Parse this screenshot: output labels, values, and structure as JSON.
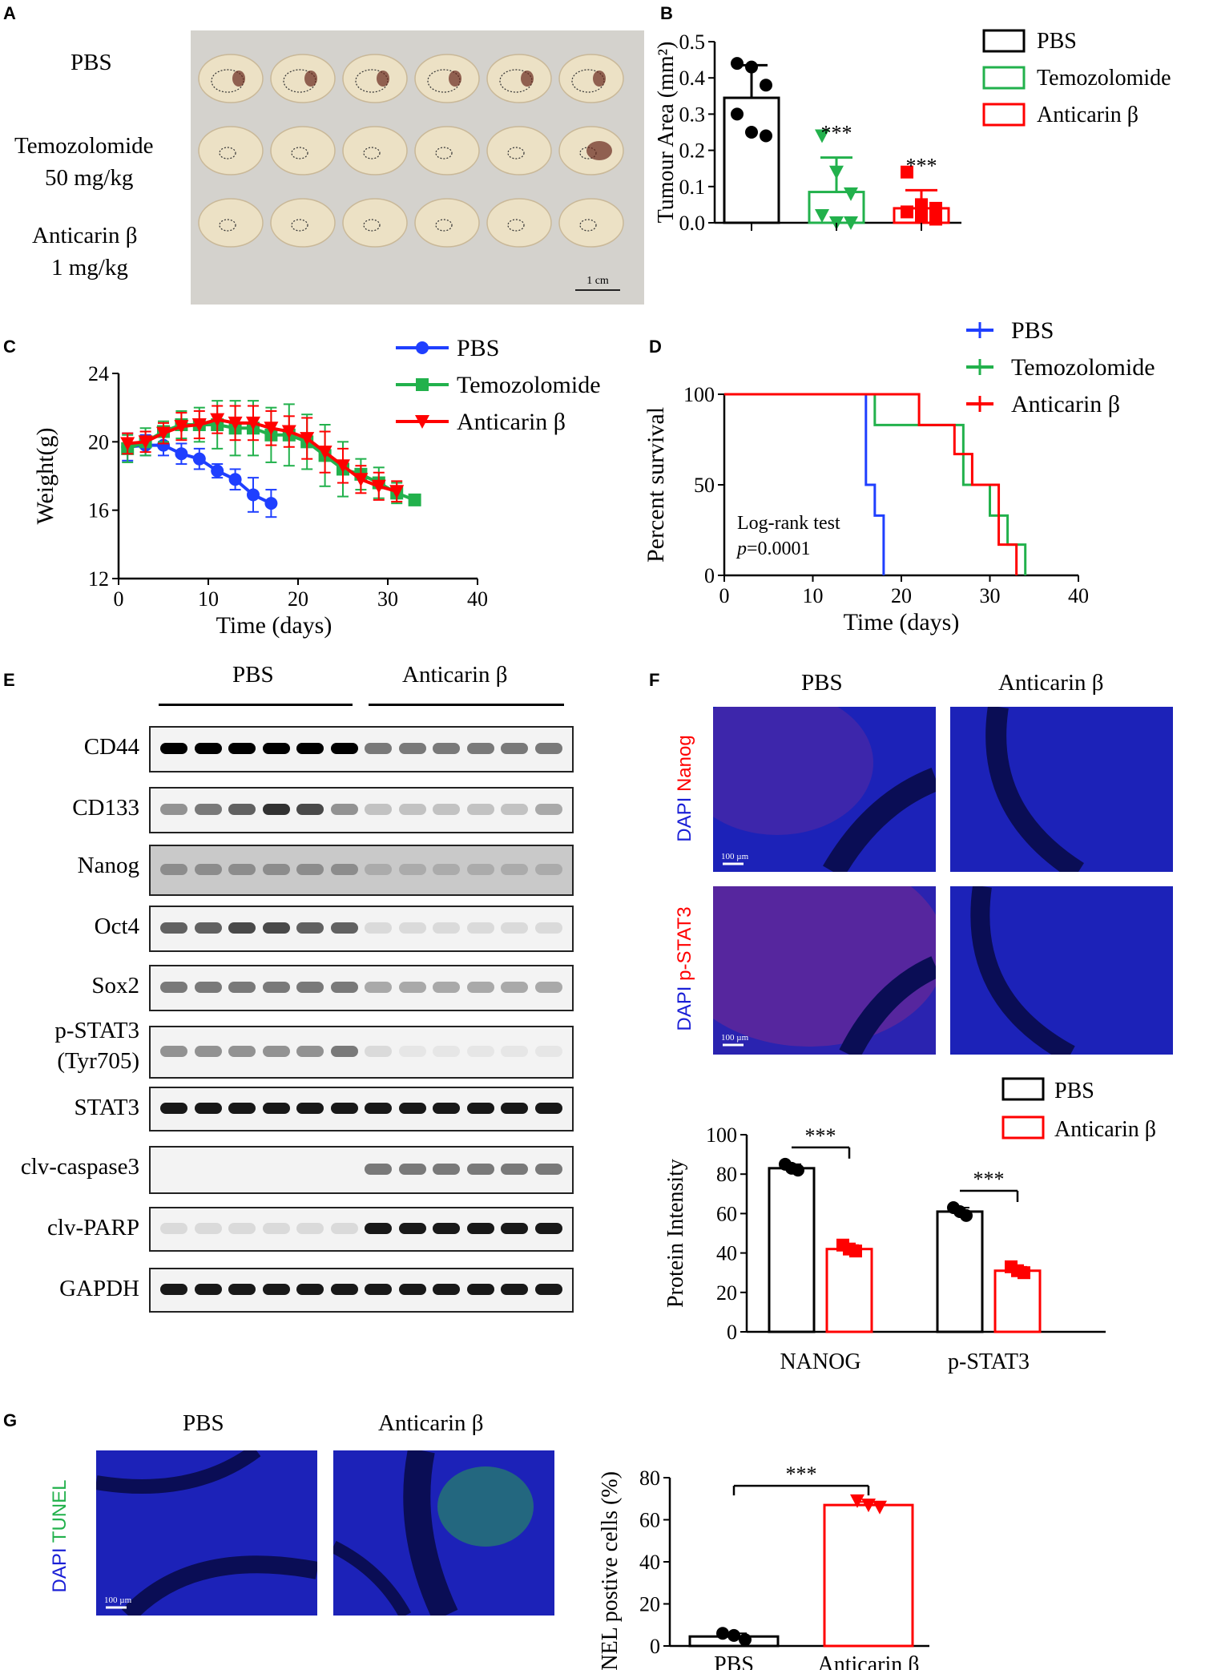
{
  "panel_letters": {
    "a": "A",
    "b": "B",
    "c": "C",
    "d": "D",
    "e": "E",
    "f": "F",
    "g": "G"
  },
  "panel_a": {
    "rows": [
      {
        "line1": "PBS",
        "line2": ""
      },
      {
        "line1": "Temozolomide",
        "line2": "50 mg/kg"
      },
      {
        "line1": "Anticarin β",
        "line2": "1 mg/kg"
      }
    ],
    "scale_bar": "1 cm"
  },
  "chart_data": [
    {
      "id": "B",
      "type": "bar",
      "ylabel": "Tumour Area (mm²)",
      "ylim": [
        0,
        0.5
      ],
      "yticks": [
        "0.0",
        "0.1",
        "0.2",
        "0.3",
        "0.4",
        "0.5"
      ],
      "categories": [
        "PBS",
        "Temozolomide",
        "Anticarin β"
      ],
      "values": [
        0.345,
        0.085,
        0.04
      ],
      "errors": [
        0.09,
        0.095,
        0.05
      ],
      "points": [
        [
          0.44,
          0.43,
          0.38,
          0.3,
          0.25,
          0.24
        ],
        [
          0.24,
          0.14,
          0.08,
          0.02,
          0.0,
          0.0
        ],
        [
          0.14,
          0.05,
          0.04,
          0.03,
          0.02,
          0.01
        ]
      ],
      "significance": [
        "",
        "***",
        "***"
      ],
      "legend": [
        "PBS",
        "Temozolomide",
        "Anticarin β"
      ],
      "colors": [
        "#000000",
        "#22b14c",
        "#ff0000"
      ]
    },
    {
      "id": "C",
      "type": "line",
      "ylabel": "Weight(g)",
      "xlabel": "Time (days)",
      "xlim": [
        0,
        40
      ],
      "ylim": [
        12,
        24
      ],
      "xticks": [
        "0",
        "10",
        "20",
        "30",
        "40"
      ],
      "yticks": [
        "12",
        "16",
        "20",
        "24"
      ],
      "series": [
        {
          "name": "PBS",
          "color": "#1f3fff",
          "x": [
            1,
            3,
            5,
            7,
            9,
            11,
            13,
            15,
            17
          ],
          "y": [
            19.7,
            19.8,
            19.8,
            19.3,
            19.0,
            18.3,
            17.8,
            16.9,
            16.4
          ],
          "err": [
            0.8,
            0.6,
            0.6,
            0.6,
            0.6,
            0.4,
            0.6,
            1.0,
            0.8
          ]
        },
        {
          "name": "Temozolomide",
          "color": "#22b14c",
          "x": [
            1,
            3,
            5,
            7,
            9,
            11,
            13,
            15,
            17,
            19,
            21,
            23,
            25,
            27,
            29,
            31,
            33
          ],
          "y": [
            19.6,
            20.0,
            20.6,
            21.0,
            21.0,
            21.0,
            20.8,
            20.8,
            20.4,
            20.4,
            20.0,
            19.2,
            18.4,
            18.1,
            17.6,
            17.0,
            16.6
          ],
          "err": [
            0.8,
            0.8,
            0.6,
            0.8,
            1.0,
            1.4,
            1.6,
            1.6,
            1.6,
            1.8,
            1.6,
            1.8,
            1.6,
            0.9,
            0.9,
            0.6,
            0.2
          ]
        },
        {
          "name": "Anticarin β",
          "color": "#ff0000",
          "x": [
            1,
            3,
            5,
            7,
            9,
            11,
            13,
            15,
            17,
            19,
            21,
            23,
            25,
            27,
            29,
            31
          ],
          "y": [
            19.9,
            20.0,
            20.5,
            20.9,
            21.0,
            21.3,
            21.1,
            21.1,
            20.8,
            20.6,
            20.2,
            19.4,
            18.6,
            17.8,
            17.4,
            17.1
          ],
          "err": [
            0.6,
            0.6,
            0.6,
            0.8,
            0.8,
            0.8,
            1.0,
            1.0,
            1.0,
            0.9,
            1.2,
            1.2,
            1.0,
            0.8,
            0.8,
            0.6
          ]
        }
      ],
      "legend": [
        "PBS",
        "Temozolomide",
        "Anticarin β"
      ]
    },
    {
      "id": "D",
      "type": "line",
      "ylabel": "Percent survival",
      "xlabel": "Time (days)",
      "xlim": [
        0,
        40
      ],
      "ylim": [
        0,
        100
      ],
      "xticks": [
        "0",
        "10",
        "20",
        "30",
        "40"
      ],
      "yticks": [
        "0",
        "50",
        "100"
      ],
      "series": [
        {
          "name": "PBS",
          "color": "#1f3fff",
          "x": [
            0,
            16,
            16,
            17,
            17,
            18,
            18
          ],
          "y": [
            100,
            100,
            50,
            50,
            33,
            33,
            0
          ]
        },
        {
          "name": "Temozolomide",
          "color": "#22b14c",
          "x": [
            0,
            17,
            17,
            18,
            18,
            27,
            27,
            30,
            30,
            32,
            32,
            34,
            34
          ],
          "y": [
            100,
            100,
            83,
            83,
            83,
            83,
            50,
            50,
            33,
            33,
            17,
            17,
            0
          ]
        },
        {
          "name": "Anticarin β",
          "color": "#ff0000",
          "x": [
            0,
            20,
            20,
            22,
            22,
            26,
            26,
            28,
            28,
            31,
            31,
            33,
            33
          ],
          "y": [
            100,
            100,
            100,
            100,
            83,
            83,
            67,
            67,
            50,
            50,
            17,
            17,
            0
          ]
        }
      ],
      "legend": [
        "PBS",
        "Temozolomide",
        "Anticarin β"
      ],
      "annotation": {
        "line1": "Log-rank test",
        "p_symbol": "p",
        "p_value": "=0.0001"
      }
    },
    {
      "id": "F",
      "type": "bar",
      "ylabel": "Protein Intensity",
      "ylim": [
        0,
        100
      ],
      "yticks": [
        "0",
        "20",
        "40",
        "60",
        "80",
        "100"
      ],
      "categories": [
        "NANOG",
        "p-STAT3"
      ],
      "series": [
        {
          "name": "PBS",
          "color": "#000000",
          "values": [
            83,
            61
          ],
          "points": [
            [
              85,
              83,
              82
            ],
            [
              63,
              61,
              59
            ]
          ]
        },
        {
          "name": "Anticarin β",
          "color": "#ff0000",
          "values": [
            42,
            31
          ],
          "points": [
            [
              44,
              42,
              41
            ],
            [
              33,
              31,
              30
            ]
          ]
        }
      ],
      "significance": [
        "***",
        "***"
      ],
      "legend": [
        "PBS",
        "Anticarin β"
      ]
    },
    {
      "id": "G",
      "type": "bar",
      "ylabel": "TUNEL postive cells (%)",
      "ylim": [
        0,
        80
      ],
      "yticks": [
        "0",
        "20",
        "40",
        "60",
        "80"
      ],
      "categories": [
        "PBS",
        "Anticarin β"
      ],
      "values": [
        4.5,
        67
      ],
      "errors": [
        1.5,
        1.5
      ],
      "points": [
        [
          6,
          5,
          3
        ],
        [
          69,
          67,
          66
        ]
      ],
      "colors": [
        "#000000",
        "#ff0000"
      ],
      "significance": "***"
    }
  ],
  "panel_e": {
    "group_labels": [
      "PBS",
      "Anticarin β"
    ],
    "rows": [
      {
        "label": "CD44",
        "label2": ""
      },
      {
        "label": "CD133",
        "label2": ""
      },
      {
        "label": "Nanog",
        "label2": ""
      },
      {
        "label": "Oct4",
        "label2": ""
      },
      {
        "label": "Sox2",
        "label2": ""
      },
      {
        "label": "p-STAT3",
        "label2": "(Tyr705)"
      },
      {
        "label": "STAT3",
        "label2": ""
      },
      {
        "label": "clv-caspase3",
        "label2": ""
      },
      {
        "label": "clv-PARP",
        "label2": ""
      },
      {
        "label": "GAPDH",
        "label2": ""
      }
    ]
  },
  "panel_f": {
    "columns": [
      "PBS",
      "Anticarin β"
    ],
    "row1": {
      "dapi": "DAPI",
      "marker": "Nanog"
    },
    "row2": {
      "dapi": "DAPI",
      "marker": "p-STAT3"
    },
    "scale": "100 µm"
  },
  "panel_g": {
    "columns": [
      "PBS",
      "Anticarin β"
    ],
    "dapi": "DAPI",
    "marker": "TUNEL",
    "scale": "100 µm"
  }
}
